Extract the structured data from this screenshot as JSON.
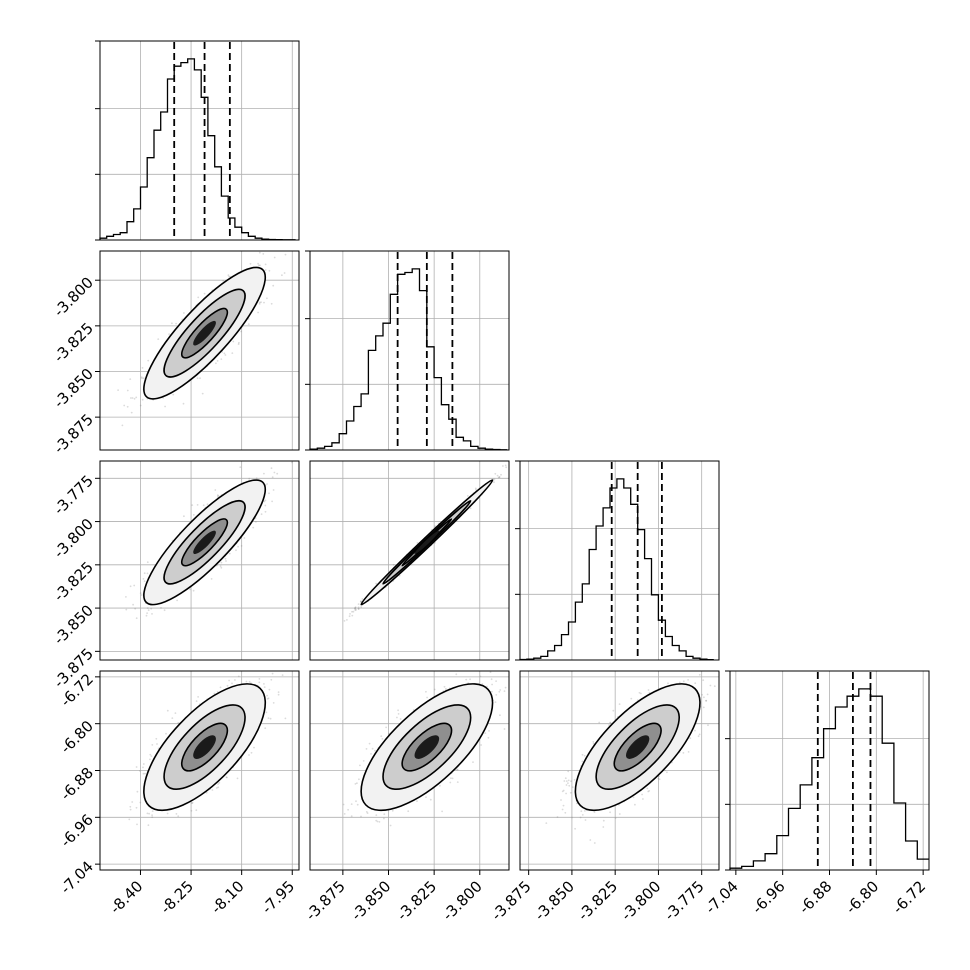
{
  "chart_data": {
    "type": "corner",
    "title": "",
    "params": [
      {
        "ticks": [
          "-8.40",
          "-8.25",
          "-8.10",
          "-7.95"
        ],
        "tick_values": [
          -8.4,
          -8.25,
          -8.1,
          -7.95
        ],
        "range": [
          -8.52,
          -7.93
        ],
        "quantiles": [
          -8.3,
          -8.21,
          -8.135
        ],
        "median": -8.21,
        "std": 0.075
      },
      {
        "ticks": [
          "-3.875",
          "-3.850",
          "-3.825",
          "-3.800"
        ],
        "tick_values": [
          -3.875,
          -3.85,
          -3.825,
          -3.8
        ],
        "range": [
          -3.893,
          -3.784
        ],
        "quantiles": [
          -3.845,
          -3.829,
          -3.815
        ],
        "median": -3.829,
        "std": 0.015
      },
      {
        "ticks": [
          "-3.875",
          "-3.850",
          "-3.825",
          "-3.800",
          "-3.775"
        ],
        "tick_values": [
          -3.875,
          -3.85,
          -3.825,
          -3.8,
          -3.775
        ],
        "range": [
          -3.88,
          -3.765
        ],
        "quantiles": [
          -3.827,
          -3.812,
          -3.798
        ],
        "median": -3.812,
        "std": 0.015
      },
      {
        "ticks": [
          "-7.04",
          "-6.96",
          "-6.88",
          "-6.80",
          "-6.72"
        ],
        "tick_values": [
          -7.04,
          -6.96,
          -6.88,
          -6.8,
          -6.72
        ],
        "range": [
          -7.05,
          -6.71
        ],
        "quantiles": [
          -6.9,
          -6.84,
          -6.81
        ],
        "median": -6.84,
        "std": 0.045
      }
    ],
    "y_ticks": [
      {
        "row": 1,
        "ticks": [
          "-3.800",
          "-3.825",
          "-3.850",
          "-3.875"
        ],
        "tick_values": [
          -3.8,
          -3.825,
          -3.85,
          -3.875
        ]
      },
      {
        "row": 2,
        "ticks": [
          "-3.775",
          "-3.800",
          "-3.825",
          "-3.850",
          "-3.875"
        ],
        "tick_values": [
          -3.775,
          -3.8,
          -3.825,
          -3.85,
          -3.875
        ]
      },
      {
        "row": 3,
        "ticks": [
          "-6.72",
          "-6.80",
          "-6.88",
          "-6.96",
          "-7.04"
        ],
        "tick_values": [
          -6.72,
          -6.8,
          -6.88,
          -6.96,
          -7.04
        ]
      }
    ],
    "histograms": [
      {
        "param": 0,
        "bin_edges": [
          -8.52,
          -8.5,
          -8.48,
          -8.46,
          -8.44,
          -8.42,
          -8.4,
          -8.38,
          -8.36,
          -8.34,
          -8.32,
          -8.3,
          -8.28,
          -8.26,
          -8.24,
          -8.22,
          -8.2,
          -8.18,
          -8.16,
          -8.14,
          -8.12,
          -8.1,
          -8.08,
          -8.06,
          -8.04,
          -8.02,
          -8.0,
          -7.98,
          -7.96,
          -7.94
        ],
        "counts": [
          1,
          2,
          3,
          4,
          10,
          17,
          29,
          45,
          60,
          70,
          88,
          95,
          97,
          99,
          93,
          78,
          57,
          40,
          24,
          12,
          7,
          4,
          2,
          1,
          0.5,
          0.3,
          0.2,
          0.1,
          0.1
        ]
      },
      {
        "param": 1,
        "bin_edges": [
          -3.893,
          -3.889,
          -3.885,
          -3.881,
          -3.877,
          -3.873,
          -3.869,
          -3.865,
          -3.861,
          -3.857,
          -3.853,
          -3.849,
          -3.845,
          -3.841,
          -3.837,
          -3.833,
          -3.829,
          -3.825,
          -3.821,
          -3.817,
          -3.813,
          -3.809,
          -3.805,
          -3.801,
          -3.797,
          -3.793,
          -3.789,
          -3.785
        ],
        "counts": [
          0.5,
          1,
          2,
          4,
          9,
          16,
          24,
          31,
          55,
          63,
          70,
          86,
          97,
          98,
          100,
          88,
          57,
          40,
          25,
          17,
          7,
          5,
          2,
          1,
          0.5,
          0.3,
          0.1
        ]
      },
      {
        "param": 2,
        "bin_edges": [
          -3.88,
          -3.876,
          -3.872,
          -3.868,
          -3.864,
          -3.86,
          -3.856,
          -3.852,
          -3.848,
          -3.844,
          -3.84,
          -3.836,
          -3.832,
          -3.828,
          -3.824,
          -3.82,
          -3.816,
          -3.812,
          -3.808,
          -3.804,
          -3.8,
          -3.796,
          -3.792,
          -3.788,
          -3.784,
          -3.78,
          -3.776,
          -3.772,
          -3.768
        ],
        "counts": [
          0.3,
          0.5,
          1,
          2,
          5,
          8,
          14,
          21,
          32,
          42,
          61,
          74,
          84,
          95,
          100,
          95,
          86,
          72,
          56,
          36,
          22,
          13,
          8,
          5,
          2,
          1,
          0.5,
          0.2
        ]
      },
      {
        "param": 3,
        "bin_edges": [
          -7.05,
          -7.03,
          -7.01,
          -6.99,
          -6.97,
          -6.95,
          -6.93,
          -6.91,
          -6.89,
          -6.87,
          -6.85,
          -6.83,
          -6.81,
          -6.79,
          -6.77,
          -6.75,
          -6.73,
          -6.71
        ],
        "counts": [
          1,
          2,
          5,
          9,
          19,
          34,
          47,
          62,
          78,
          90,
          96,
          100,
          96,
          70,
          37,
          16,
          6
        ]
      }
    ]
  }
}
